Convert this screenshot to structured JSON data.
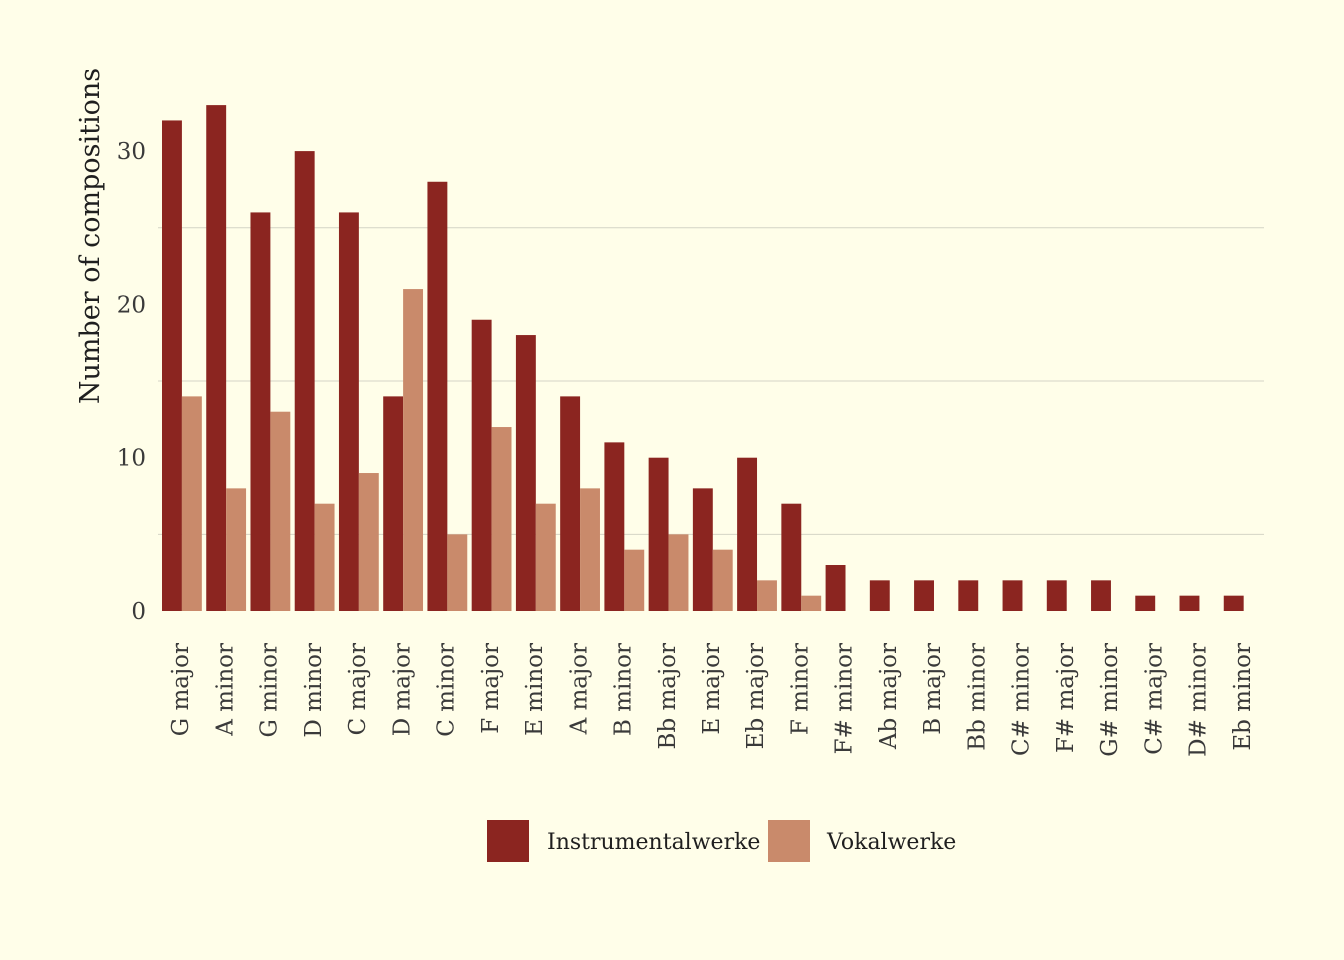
{
  "chart_data": {
    "type": "bar",
    "title": "",
    "xlabel": "",
    "ylabel": "Number of compositions",
    "ylim": [
      0,
      33
    ],
    "yticks": [
      0,
      10,
      20,
      30
    ],
    "grid": true,
    "legend_position": "bottom",
    "categories": [
      "G major",
      "A minor",
      "G minor",
      "D minor",
      "C major",
      "D major",
      "C minor",
      "F major",
      "E minor",
      "A major",
      "B minor",
      "Bb major",
      "E major",
      "Eb major",
      "F minor",
      "F# minor",
      "Ab major",
      "B major",
      "Bb minor",
      "C# minor",
      "F# major",
      "G# minor",
      "C# major",
      "D# minor",
      "Eb minor"
    ],
    "series": [
      {
        "name": "Instrumentalwerke",
        "color": "#8b2520",
        "values": [
          32,
          33,
          26,
          30,
          26,
          14,
          28,
          19,
          18,
          14,
          11,
          10,
          8,
          10,
          7,
          3,
          2,
          2,
          2,
          2,
          2,
          2,
          1,
          1,
          1
        ]
      },
      {
        "name": "Vokalwerke",
        "color": "#c98a6b",
        "values": [
          14,
          8,
          13,
          7,
          9,
          21,
          5,
          12,
          7,
          8,
          4,
          5,
          4,
          2,
          1,
          0,
          0,
          0,
          0,
          0,
          0,
          0,
          0,
          0,
          0
        ]
      }
    ]
  }
}
